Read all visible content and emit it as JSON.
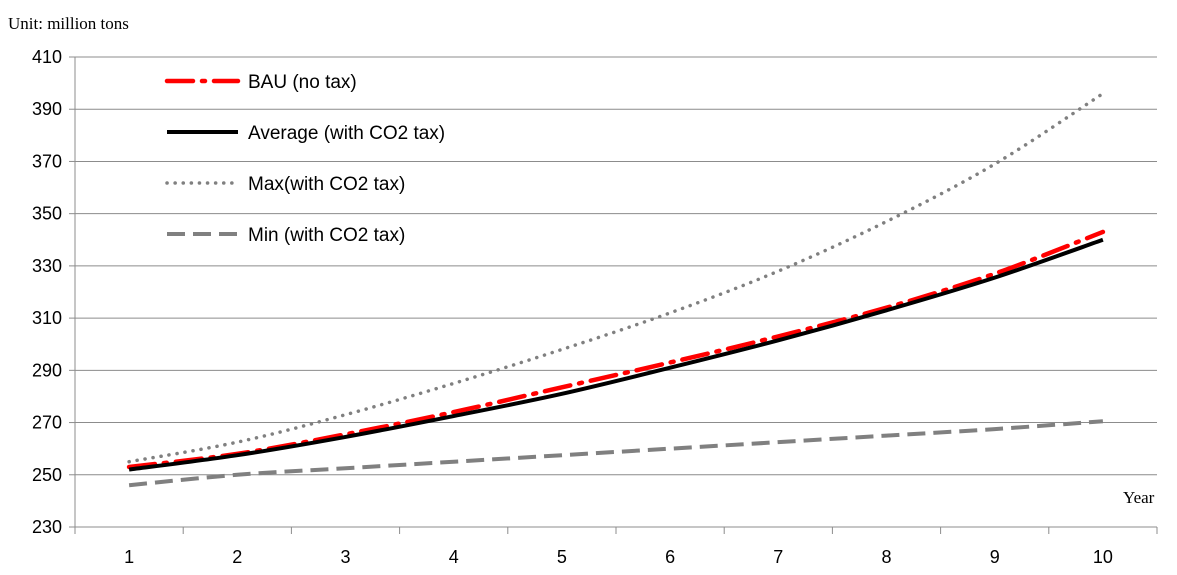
{
  "chart_data": {
    "type": "line",
    "unit_label": "Unit:  million tons",
    "xlabel": "Year",
    "ylabel": "",
    "x": [
      1,
      2,
      3,
      4,
      5,
      6,
      7,
      8,
      9,
      10
    ],
    "ylim": [
      230,
      410
    ],
    "yticks": [
      230,
      250,
      270,
      290,
      310,
      330,
      350,
      370,
      390,
      410
    ],
    "xtick_labels": [
      "1",
      "2",
      "3",
      "4",
      "5",
      "6",
      "7",
      "8",
      "9",
      "10"
    ],
    "grid": "horizontal",
    "legend_position": "top-left",
    "series": [
      {
        "name": "BAU (no tax)",
        "color": "#ff0000",
        "style": "dash-dot",
        "values": [
          253,
          258,
          265.5,
          274,
          283.5,
          293,
          303,
          314,
          327,
          343
        ]
      },
      {
        "name": "Average (with CO2 tax)",
        "color": "#000000",
        "style": "solid",
        "values": [
          252,
          257.5,
          264.5,
          272.5,
          281,
          291,
          301.5,
          313,
          325.5,
          340
        ]
      },
      {
        "name": "Max(with CO2 tax)",
        "color": "#808080",
        "style": "dotted",
        "values": [
          255,
          262.5,
          273,
          285,
          298,
          312,
          328,
          347,
          369,
          396
        ]
      },
      {
        "name": "Min (with CO2 tax)",
        "color": "#808080",
        "style": "dashed",
        "values": [
          246,
          250,
          252.5,
          255,
          257.5,
          260,
          262.5,
          265,
          267.5,
          270.5
        ]
      }
    ]
  }
}
